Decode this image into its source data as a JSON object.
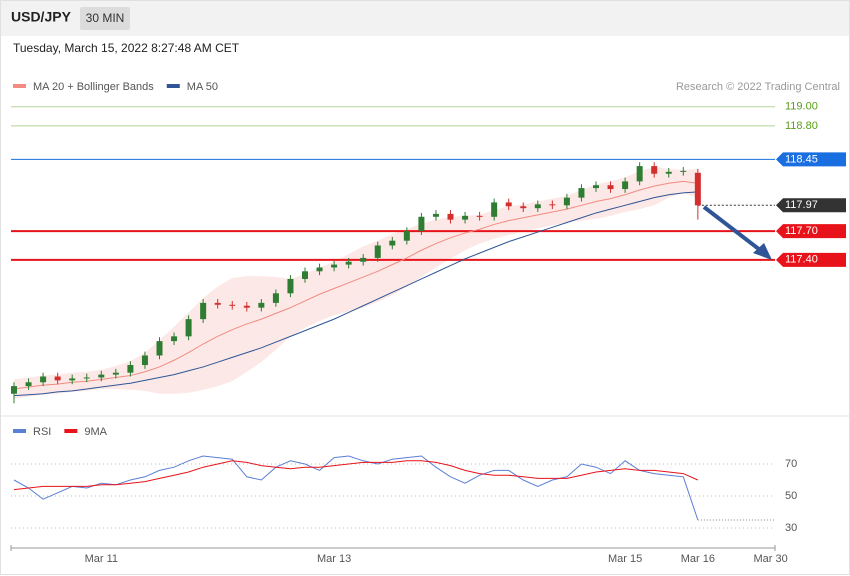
{
  "header": {
    "symbol": "USD/JPY",
    "interval": "30 MIN",
    "timestamp": "Tuesday, March 15, 2022 8:27:48 AM CET",
    "credit": "Research © 2022 Trading Central"
  },
  "chart_data": [
    {
      "type": "candlestick",
      "up_color": "#2e7d32",
      "down_color": "#d32f2f",
      "open": [
        116.0,
        116.08,
        116.12,
        116.18,
        116.14,
        116.16,
        116.17,
        116.2,
        116.22,
        116.3,
        116.4,
        116.55,
        116.6,
        116.78,
        116.95,
        116.93,
        116.92,
        116.9,
        116.95,
        117.05,
        117.2,
        117.28,
        117.32,
        117.35,
        117.38,
        117.42,
        117.55,
        117.6,
        117.7,
        117.85,
        117.88,
        117.82,
        117.86,
        117.85,
        118.0,
        117.96,
        117.94,
        117.98,
        117.97,
        118.05,
        118.15,
        118.18,
        118.14,
        118.22,
        118.38,
        118.3,
        118.32,
        118.31
      ],
      "high": [
        116.12,
        116.16,
        116.22,
        116.22,
        116.2,
        116.21,
        116.24,
        116.26,
        116.34,
        116.44,
        116.59,
        116.64,
        116.82,
        116.99,
        116.99,
        116.97,
        116.96,
        116.99,
        117.09,
        117.24,
        117.32,
        117.36,
        117.39,
        117.42,
        117.46,
        117.59,
        117.64,
        117.74,
        117.89,
        117.92,
        117.92,
        117.9,
        117.9,
        118.04,
        118.04,
        118.0,
        118.02,
        118.02,
        118.09,
        118.19,
        118.22,
        118.22,
        118.26,
        118.42,
        118.42,
        118.36,
        118.37,
        118.35
      ],
      "low": [
        115.9,
        116.04,
        116.08,
        116.1,
        116.1,
        116.12,
        116.13,
        116.16,
        116.18,
        116.26,
        116.36,
        116.51,
        116.56,
        116.74,
        116.89,
        116.88,
        116.86,
        116.86,
        116.91,
        117.01,
        117.16,
        117.24,
        117.28,
        117.31,
        117.34,
        117.38,
        117.51,
        117.56,
        117.66,
        117.81,
        117.78,
        117.78,
        117.81,
        117.81,
        117.92,
        117.9,
        117.9,
        117.93,
        117.93,
        118.01,
        118.11,
        118.1,
        118.1,
        118.18,
        118.26,
        118.26,
        118.28,
        117.82
      ],
      "close": [
        116.08,
        116.12,
        116.18,
        116.14,
        116.16,
        116.17,
        116.2,
        116.22,
        116.3,
        116.4,
        116.55,
        116.6,
        116.78,
        116.95,
        116.93,
        116.92,
        116.9,
        116.95,
        117.05,
        117.2,
        117.28,
        117.32,
        117.35,
        117.38,
        117.42,
        117.55,
        117.6,
        117.7,
        117.85,
        117.88,
        117.82,
        117.86,
        117.85,
        118.0,
        117.96,
        117.94,
        117.98,
        117.97,
        118.05,
        118.15,
        118.18,
        118.14,
        118.22,
        118.38,
        118.3,
        118.32,
        118.33,
        117.97
      ],
      "series": [
        {
          "name": "MA 20 + Bollinger Bands",
          "color": "#f28b82",
          "values": [
            116.05,
            116.07,
            116.09,
            116.1,
            116.12,
            116.13,
            116.15,
            116.17,
            116.19,
            116.23,
            116.28,
            116.35,
            116.43,
            116.52,
            116.6,
            116.67,
            116.73,
            116.78,
            116.84,
            116.9,
            116.97,
            117.04,
            117.1,
            117.16,
            117.22,
            117.28,
            117.35,
            117.42,
            117.5,
            117.57,
            117.63,
            117.68,
            117.72,
            117.77,
            117.81,
            117.84,
            117.87,
            117.9,
            117.93,
            117.97,
            118.01,
            118.04,
            118.08,
            118.13,
            118.17,
            118.2,
            118.22,
            118.2
          ],
          "upper": [
            116.15,
            116.17,
            116.19,
            116.2,
            116.22,
            116.23,
            116.25,
            116.29,
            116.34,
            116.43,
            116.56,
            116.7,
            116.85,
            117.0,
            117.12,
            117.21,
            117.23,
            117.23,
            117.22,
            117.2,
            117.25,
            117.32,
            117.38,
            117.46,
            117.54,
            117.6,
            117.67,
            117.72,
            117.78,
            117.82,
            117.85,
            117.86,
            117.87,
            117.92,
            117.96,
            117.98,
            118.01,
            118.04,
            118.07,
            118.13,
            118.19,
            118.22,
            118.26,
            118.33,
            118.37,
            118.35,
            118.34,
            118.35
          ],
          "lower": [
            115.95,
            115.97,
            115.99,
            116.0,
            116.02,
            116.03,
            116.05,
            116.05,
            116.04,
            116.03,
            116.0,
            116.0,
            116.01,
            116.04,
            116.08,
            116.13,
            116.23,
            116.33,
            116.46,
            116.6,
            116.69,
            116.76,
            116.82,
            116.86,
            116.9,
            116.96,
            117.03,
            117.12,
            117.22,
            117.32,
            117.41,
            117.5,
            117.57,
            117.62,
            117.66,
            117.7,
            117.73,
            117.76,
            117.79,
            117.81,
            117.83,
            117.86,
            117.9,
            117.93,
            117.97,
            118.05,
            118.1,
            118.05
          ]
        },
        {
          "name": "MA 50",
          "color": "#2f5597",
          "values": [
            115.98,
            115.99,
            116.0,
            116.02,
            116.03,
            116.05,
            116.07,
            116.09,
            116.11,
            116.14,
            116.17,
            116.2,
            116.24,
            116.28,
            116.33,
            116.38,
            116.43,
            116.48,
            116.54,
            116.6,
            116.66,
            116.72,
            116.78,
            116.85,
            116.92,
            116.99,
            117.06,
            117.13,
            117.2,
            117.27,
            117.34,
            117.41,
            117.47,
            117.53,
            117.59,
            117.64,
            117.69,
            117.74,
            117.79,
            117.84,
            117.89,
            117.93,
            117.97,
            118.01,
            118.05,
            118.08,
            118.1,
            118.11
          ]
        }
      ],
      "levels": [
        {
          "value": 119,
          "label": "119.00",
          "color": "#5a9e1a",
          "style": "plain"
        },
        {
          "value": 118.8,
          "label": "118.80",
          "color": "#5a9e1a",
          "style": "plain"
        },
        {
          "value": 118.45,
          "label": "118.45",
          "color": "#1a6fe0",
          "style": "solid"
        },
        {
          "value": 117.97,
          "label": "117.97",
          "color": "#333333",
          "style": "dotted"
        },
        {
          "value": 117.7,
          "label": "117.70",
          "color": "#e8131a",
          "style": "bold"
        },
        {
          "value": 117.4,
          "label": "117.40",
          "color": "#e8131a",
          "style": "bold"
        }
      ],
      "ylim": [
        115.83,
        119.28
      ]
    },
    {
      "type": "line",
      "categories": [
        null,
        null,
        null,
        null,
        null,
        null,
        "Mar 11",
        null,
        null,
        null,
        null,
        null,
        null,
        null,
        null,
        null,
        null,
        null,
        null,
        null,
        null,
        null,
        "Mar 13",
        null,
        null,
        null,
        null,
        null,
        null,
        null,
        null,
        null,
        null,
        null,
        null,
        null,
        null,
        null,
        null,
        null,
        null,
        null,
        "Mar 15",
        null,
        null,
        null,
        null,
        "Mar 16",
        null,
        null,
        null,
        null,
        "Mar 30"
      ],
      "series": [
        {
          "name": "RSI",
          "color": "#5b7fd6",
          "values": [
            60,
            55,
            48,
            52,
            56,
            55,
            58,
            57,
            60,
            62,
            66,
            68,
            72,
            75,
            74,
            73,
            62,
            60,
            68,
            72,
            70,
            66,
            74,
            75,
            72,
            70,
            73,
            74,
            75,
            68,
            62,
            58,
            63,
            66,
            66,
            60,
            56,
            60,
            62,
            70,
            68,
            64,
            72,
            66,
            64,
            63,
            62,
            35,
            null,
            null,
            null,
            null,
            null
          ]
        },
        {
          "name": "9MA",
          "color": "#e8131a",
          "values": [
            54,
            55,
            56,
            56,
            56,
            56,
            57,
            57,
            58,
            59,
            61,
            63,
            65,
            68,
            70,
            72,
            71,
            69,
            68,
            67,
            68,
            68,
            69,
            70,
            71,
            71,
            71,
            72,
            72,
            71,
            69,
            66,
            64,
            63,
            63,
            62,
            61,
            61,
            61,
            63,
            65,
            66,
            67,
            66,
            66,
            65,
            64,
            60,
            null,
            null,
            null,
            null,
            null
          ]
        }
      ],
      "ylim": [
        22.5,
        85
      ],
      "yticks": [
        30,
        50,
        70
      ],
      "grid": true
    }
  ]
}
